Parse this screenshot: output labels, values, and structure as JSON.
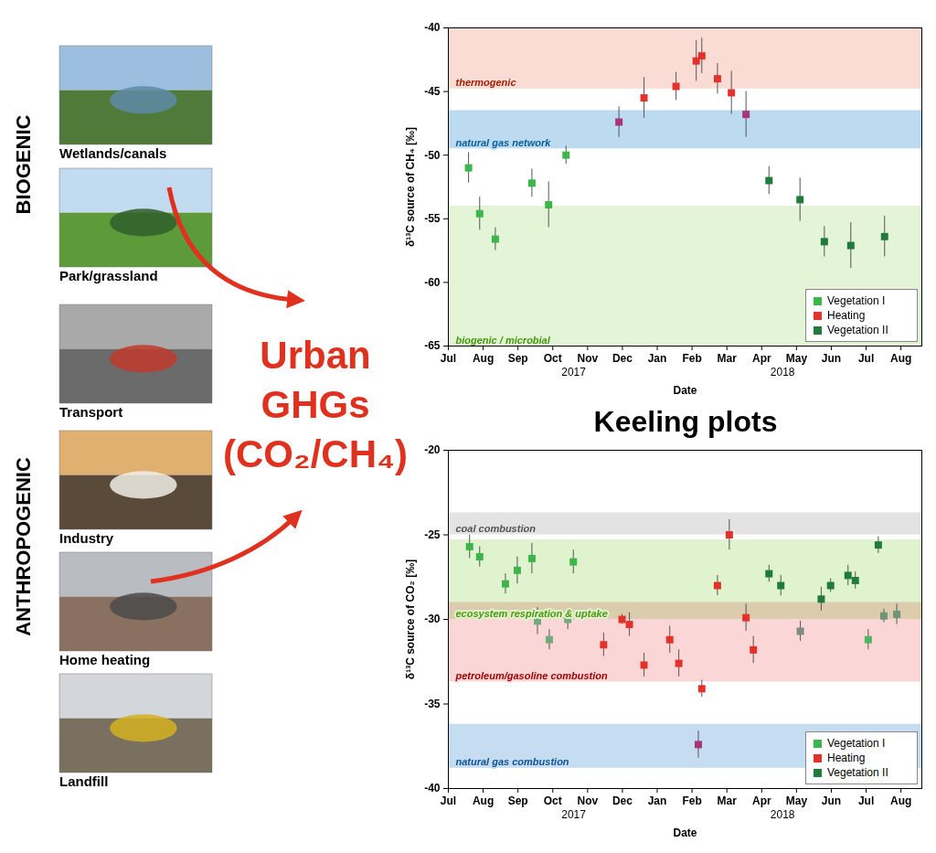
{
  "diagram": {
    "groups": [
      {
        "label": "BIOGENIC",
        "items": [
          "Wetlands/canals",
          "Park/grassland"
        ]
      },
      {
        "label": "ANTHROPOGENIC",
        "items": [
          "Transport",
          "Industry",
          "Home heating",
          "Landfill"
        ]
      }
    ],
    "center_text": "Urban GHGs (CO₂/CH₄)",
    "charts_title": "Keeling plots"
  },
  "chart_data": [
    {
      "type": "scatter",
      "x_label": "Date",
      "y_label": "δ¹³C source of CH₄ [‰]",
      "xlim": [
        0,
        13.6
      ],
      "xticks": [
        {
          "value": 0,
          "label": "Jul"
        },
        {
          "value": 1,
          "label": "Aug"
        },
        {
          "value": 2,
          "label": "Sep"
        },
        {
          "value": 3,
          "label": "Oct"
        },
        {
          "value": 4,
          "label": "Nov"
        },
        {
          "value": 5,
          "label": "Dec"
        },
        {
          "value": 6,
          "label": "Jan"
        },
        {
          "value": 7,
          "label": "Feb"
        },
        {
          "value": 8,
          "label": "Mar"
        },
        {
          "value": 9,
          "label": "Apr"
        },
        {
          "value": 10,
          "label": "May"
        },
        {
          "value": 11,
          "label": "Jun"
        },
        {
          "value": 12,
          "label": "Jul"
        },
        {
          "value": 13,
          "label": "Aug"
        }
      ],
      "year_labels": [
        {
          "value": 3.6,
          "label": "2017"
        },
        {
          "value": 9.6,
          "label": "2018"
        }
      ],
      "ylim": [
        -65,
        -40
      ],
      "yticks": [
        -65,
        -60,
        -55,
        -50,
        -45,
        -40
      ],
      "bands": [
        {
          "label": "thermogenic",
          "from": -40,
          "to": -44.8,
          "color": "#fbdcd5"
        },
        {
          "label": "natural gas network",
          "from": -46.5,
          "to": -49.5,
          "color": "#bcdbf1"
        },
        {
          "label": "biogenic / microbial",
          "from": -54,
          "to": -65,
          "color": "#e3f5d6"
        }
      ],
      "legend": "bottom-right",
      "marker": "square",
      "series": [
        {
          "name": "Vegetation I",
          "color": "#3cb54a",
          "x": [
            0.58,
            0.9,
            1.35,
            2.4,
            2.88,
            3.38
          ],
          "values": [
            -51.0,
            -54.6,
            -56.6,
            -52.2,
            -53.9,
            -50.0
          ],
          "errors": [
            1.2,
            1.3,
            0.9,
            1.1,
            1.8,
            0.7
          ],
          "colors": [
            "#3cb54a",
            "#3cb54a",
            "#3cb54a",
            "#3cb54a",
            "#3cb54a",
            "#3cb54a"
          ]
        },
        {
          "name": "Heating",
          "color": "#e5312b",
          "x": [
            4.9,
            5.62,
            6.54,
            7.12,
            7.28,
            7.73,
            8.13,
            8.55
          ],
          "values": [
            -47.4,
            -45.5,
            -44.6,
            -42.6,
            -42.2,
            -44.0,
            -45.1,
            -46.8
          ],
          "errors": [
            1.2,
            1.6,
            1.1,
            1.6,
            1.4,
            1.2,
            1.7,
            1.8
          ],
          "colors": [
            "#a8347a",
            "#e5312b",
            "#e5312b",
            "#e5312b",
            "#e5312b",
            "#e5312b",
            "#e5312b",
            "#a8347a"
          ]
        },
        {
          "name": "Vegetation II",
          "color": "#1e7b3c",
          "x": [
            9.21,
            10.1,
            10.8,
            11.56,
            12.53
          ],
          "values": [
            -52.0,
            -53.5,
            -56.8,
            -57.1,
            -56.4
          ],
          "errors": [
            1.1,
            1.7,
            1.2,
            1.8,
            1.6
          ],
          "colors": [
            "#1e7b3c",
            "#1e7b3c",
            "#1e7b3c",
            "#1e7b3c",
            "#1e7b3c"
          ]
        }
      ]
    },
    {
      "type": "scatter",
      "x_label": "Date",
      "y_label": "δ¹³C source of CO₂ [‰]",
      "xlim": [
        0,
        13.6
      ],
      "xticks": [
        {
          "value": 0,
          "label": "Jul"
        },
        {
          "value": 1,
          "label": "Aug"
        },
        {
          "value": 2,
          "label": "Sep"
        },
        {
          "value": 3,
          "label": "Oct"
        },
        {
          "value": 4,
          "label": "Nov"
        },
        {
          "value": 5,
          "label": "Dec"
        },
        {
          "value": 6,
          "label": "Jan"
        },
        {
          "value": 7,
          "label": "Feb"
        },
        {
          "value": 8,
          "label": "Mar"
        },
        {
          "value": 9,
          "label": "Apr"
        },
        {
          "value": 10,
          "label": "May"
        },
        {
          "value": 11,
          "label": "Jun"
        },
        {
          "value": 12,
          "label": "Jul"
        },
        {
          "value": 13,
          "label": "Aug"
        }
      ],
      "year_labels": [
        {
          "value": 3.6,
          "label": "2017"
        },
        {
          "value": 9.6,
          "label": "2018"
        }
      ],
      "ylim": [
        -40,
        -20
      ],
      "yticks": [
        -40,
        -35,
        -30,
        -25,
        -20
      ],
      "bands": [
        {
          "label": "coal combustion",
          "from": -23.7,
          "to": -25.0,
          "color": "#e3e3e3"
        },
        {
          "label": "ecosystem respiration & uptake",
          "from": -25.3,
          "to": -30.0,
          "color": "#e0f3cf"
        },
        {
          "label": "petroleum/gasoline combustion",
          "from": -29.0,
          "to": -33.7,
          "color": "#fbd6d6"
        },
        {
          "label": "natural gas combustion",
          "from": -36.2,
          "to": -38.8,
          "color": "#c6dcf1"
        }
      ],
      "legend": "bottom-right",
      "marker": "square",
      "series": [
        {
          "name": "Vegetation I",
          "color": "#3cb54a",
          "x": [
            0.61,
            0.9,
            1.64,
            1.98,
            2.4,
            2.56,
            2.9,
            3.43,
            3.59
          ],
          "values": [
            -25.7,
            -26.3,
            -27.9,
            -27.1,
            -26.4,
            -30.1,
            -31.2,
            -30.0,
            -26.6
          ],
          "errors": [
            0.7,
            0.6,
            0.6,
            0.8,
            0.9,
            0.8,
            0.6,
            0.6,
            0.7
          ],
          "colors": [
            "#3cb54a",
            "#3cb54a",
            "#3cb54a",
            "#3cb54a",
            "#3cb54a",
            "#74a97a",
            "#74a97a",
            "#74a97a",
            "#3cb54a"
          ]
        },
        {
          "name": "Heating",
          "color": "#e5312b",
          "x": [
            4.46,
            4.99,
            5.2,
            5.62,
            6.36,
            6.62,
            7.18,
            7.28,
            7.73,
            8.07,
            8.55,
            8.76
          ],
          "values": [
            -31.5,
            -30.0,
            -30.3,
            -32.7,
            -31.2,
            -32.6,
            -37.4,
            -34.1,
            -28.0,
            -25.0,
            -29.9,
            -31.8
          ],
          "errors": [
            0.7,
            0.3,
            0.7,
            0.7,
            0.8,
            0.8,
            0.8,
            0.5,
            0.6,
            0.9,
            0.8,
            0.8
          ],
          "colors": [
            "#e5312b",
            "#e5312b",
            "#e5312b",
            "#e5312b",
            "#e5312b",
            "#e5312b",
            "#a8347a",
            "#e5312b",
            "#e5312b",
            "#e5312b",
            "#e5312b",
            "#e5312b"
          ]
        },
        {
          "name": "Vegetation II",
          "color": "#1e7b3c",
          "x": [
            9.21,
            9.55,
            10.11,
            10.71,
            10.98,
            11.48,
            11.69,
            12.06,
            12.35,
            12.51,
            12.88
          ],
          "values": [
            -27.3,
            -28.0,
            -30.7,
            -28.8,
            -28.0,
            -27.4,
            -27.7,
            -31.2,
            -25.6,
            -29.8,
            -29.7
          ],
          "errors": [
            0.5,
            0.6,
            0.6,
            0.7,
            0.4,
            0.6,
            0.5,
            0.6,
            0.5,
            0.4,
            0.6
          ],
          "colors": [
            "#1e7b3c",
            "#1e7b3c",
            "#7f8a84",
            "#1e7b3c",
            "#1e7b3c",
            "#1e7b3c",
            "#1e7b3c",
            "#4fb463",
            "#1e7b3c",
            "#6f9477",
            "#6f9477"
          ]
        }
      ]
    }
  ]
}
